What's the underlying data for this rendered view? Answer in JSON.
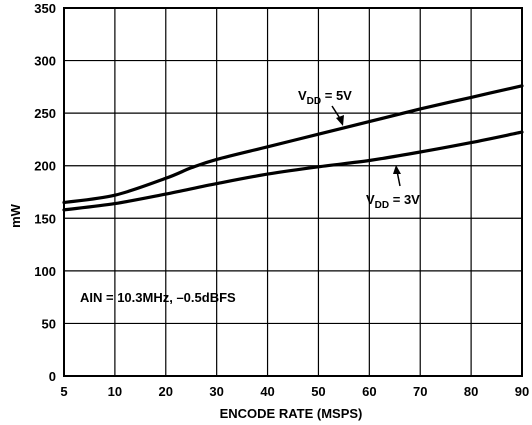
{
  "chart_data": {
    "type": "line",
    "title": "",
    "xlabel": "ENCODE RATE (MSPS)",
    "ylabel": "mW",
    "x_ticks": [
      5,
      10,
      20,
      30,
      40,
      50,
      60,
      70,
      80,
      90
    ],
    "y_ticks": [
      0,
      50,
      100,
      150,
      200,
      250,
      300,
      350
    ],
    "xlim": [
      5,
      90
    ],
    "ylim": [
      0,
      350
    ],
    "grid": true,
    "legend": "none",
    "series": [
      {
        "name": "VDD = 5V",
        "x": [
          5,
          10,
          20,
          25,
          30,
          40,
          50,
          60,
          70,
          80,
          90
        ],
        "y": [
          165,
          172,
          188,
          198,
          206,
          218,
          230,
          242,
          254,
          265,
          276
        ]
      },
      {
        "name": "VDD = 3V",
        "x": [
          5,
          10,
          20,
          30,
          40,
          50,
          60,
          70,
          80,
          90
        ],
        "y": [
          158,
          164,
          173,
          183,
          192,
          199,
          205,
          213,
          222,
          232
        ]
      }
    ],
    "annotations": {
      "vdd5_main": "V",
      "vdd5_sub": "DD",
      "vdd5_rest": " = 5V",
      "vdd3_main": "V",
      "vdd3_sub": "DD",
      "vdd3_rest": " = 3V",
      "condition": "AIN = 10.3MHz, –0.5dBFS"
    }
  }
}
